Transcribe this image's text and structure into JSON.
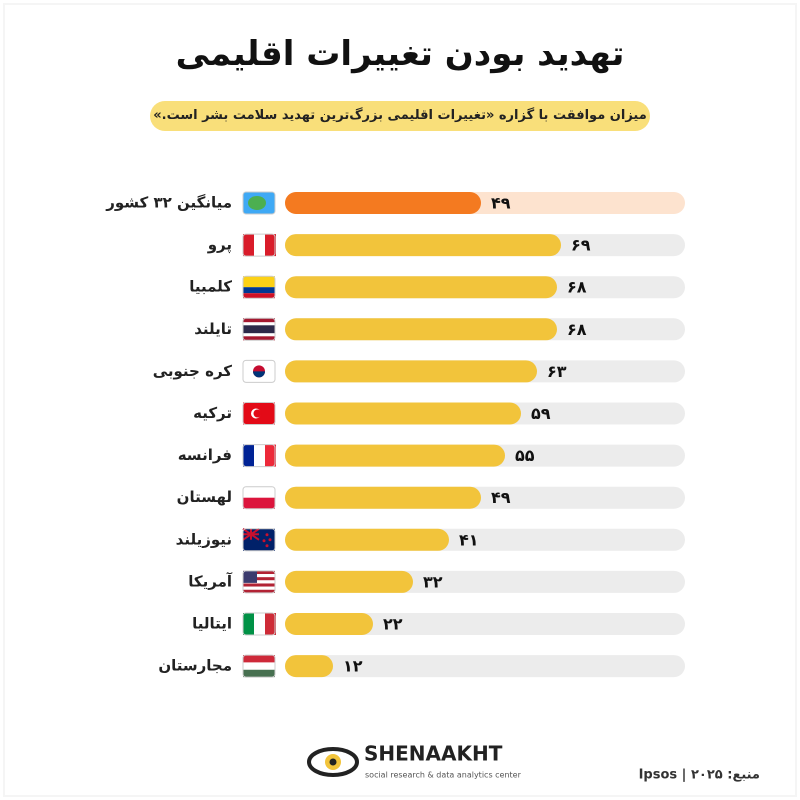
{
  "chart_data": {
    "type": "bar",
    "orientation": "horizontal",
    "title": "تهدید بودن تغییرات اقلیمی",
    "subtitle": "میزان موافقت با گزاره «تغییرات اقلیمی بزرگ‌ترین تهدید سلامت بشر است.»",
    "categories": [
      "میانگین ۳۲ کشور",
      "پرو",
      "کلمبیا",
      "تایلند",
      "کره جنوبی",
      "ترکیه",
      "فرانسه",
      "لهستان",
      "نیوزیلند",
      "آمریکا",
      "ایتالیا",
      "مجارستان"
    ],
    "values": [
      49,
      69,
      68,
      68,
      63,
      59,
      55,
      49,
      41,
      32,
      22,
      12
    ],
    "value_labels": [
      "۴۹",
      "۶۹",
      "۶۸",
      "۶۸",
      "۶۳",
      "۵۹",
      "۵۵",
      "۴۹",
      "۴۱",
      "۳۲",
      "۲۲",
      "۱۲"
    ],
    "colors": [
      "#f47a20",
      "#f2c43b",
      "#f2c43b",
      "#f2c43b",
      "#f2c43b",
      "#f2c43b",
      "#f2c43b",
      "#f2c43b",
      "#f2c43b",
      "#f2c43b",
      "#f2c43b",
      "#f2c43b"
    ],
    "xlim": [
      0,
      100
    ],
    "source": "منبع: ۲۰۲۵ | Ipsos"
  },
  "footer": {
    "brand": "SHENAAKHT",
    "tagline": "social research & data analytics center"
  }
}
